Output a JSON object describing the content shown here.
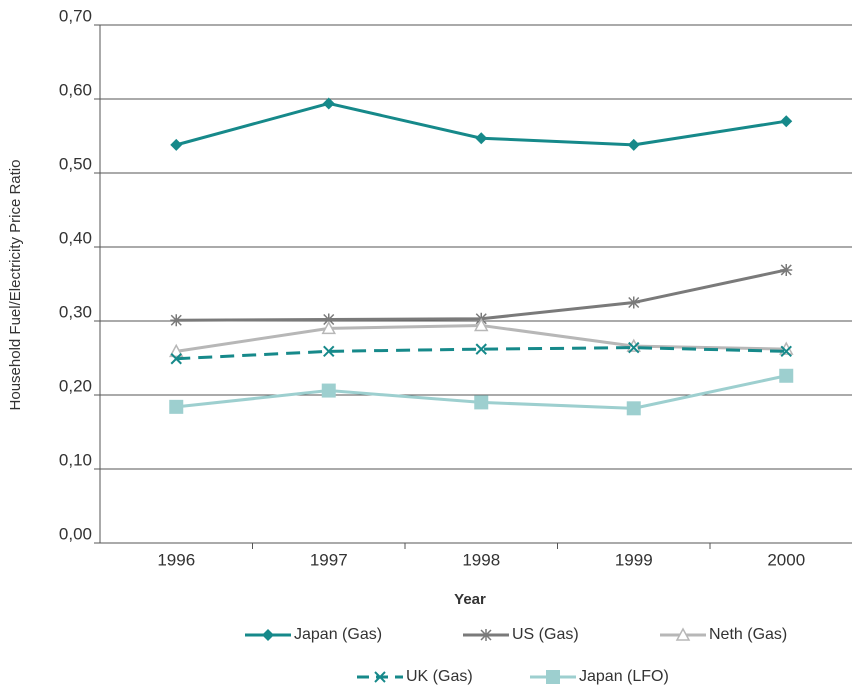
{
  "chart_data": {
    "type": "line",
    "xlabel": "Year",
    "ylabel": "Household Fuel/Electricity Price Ratio",
    "categories": [
      "1996",
      "1997",
      "1998",
      "1999",
      "2000"
    ],
    "ylim": [
      0,
      0.7
    ],
    "yticks": [
      {
        "value": 0,
        "label": "0,00"
      },
      {
        "value": 0.1,
        "label": "0,10"
      },
      {
        "value": 0.2,
        "label": "0,20"
      },
      {
        "value": 0.3,
        "label": "0,30"
      },
      {
        "value": 0.4,
        "label": "0,40"
      },
      {
        "value": 0.5,
        "label": "0,50"
      },
      {
        "value": 0.6,
        "label": "0,60"
      },
      {
        "value": 0.7,
        "label": "0,70"
      }
    ],
    "grid": true,
    "series": [
      {
        "name": "Japan (Gas)",
        "color": "#16898a",
        "marker": "diamond",
        "values": [
          0.538,
          0.594,
          0.547,
          0.538,
          0.57
        ]
      },
      {
        "name": "US (Gas)",
        "color": "#7a7a7a",
        "marker": "asterisk",
        "values": [
          0.301,
          0.302,
          0.303,
          0.325,
          0.369
        ]
      },
      {
        "name": "Neth (Gas)",
        "color": "#b7b7b7",
        "marker": "triangle",
        "values": [
          0.259,
          0.29,
          0.294,
          0.266,
          0.262
        ]
      },
      {
        "name": "UK (Gas)",
        "color": "#16898a",
        "marker": "x",
        "dashed": true,
        "values": [
          0.249,
          0.259,
          0.262,
          0.264,
          0.259
        ]
      },
      {
        "name": "Japan (LFO)",
        "color": "#9dcfcf",
        "marker": "square",
        "values": [
          0.184,
          0.206,
          0.19,
          0.182,
          0.226
        ]
      }
    ]
  }
}
